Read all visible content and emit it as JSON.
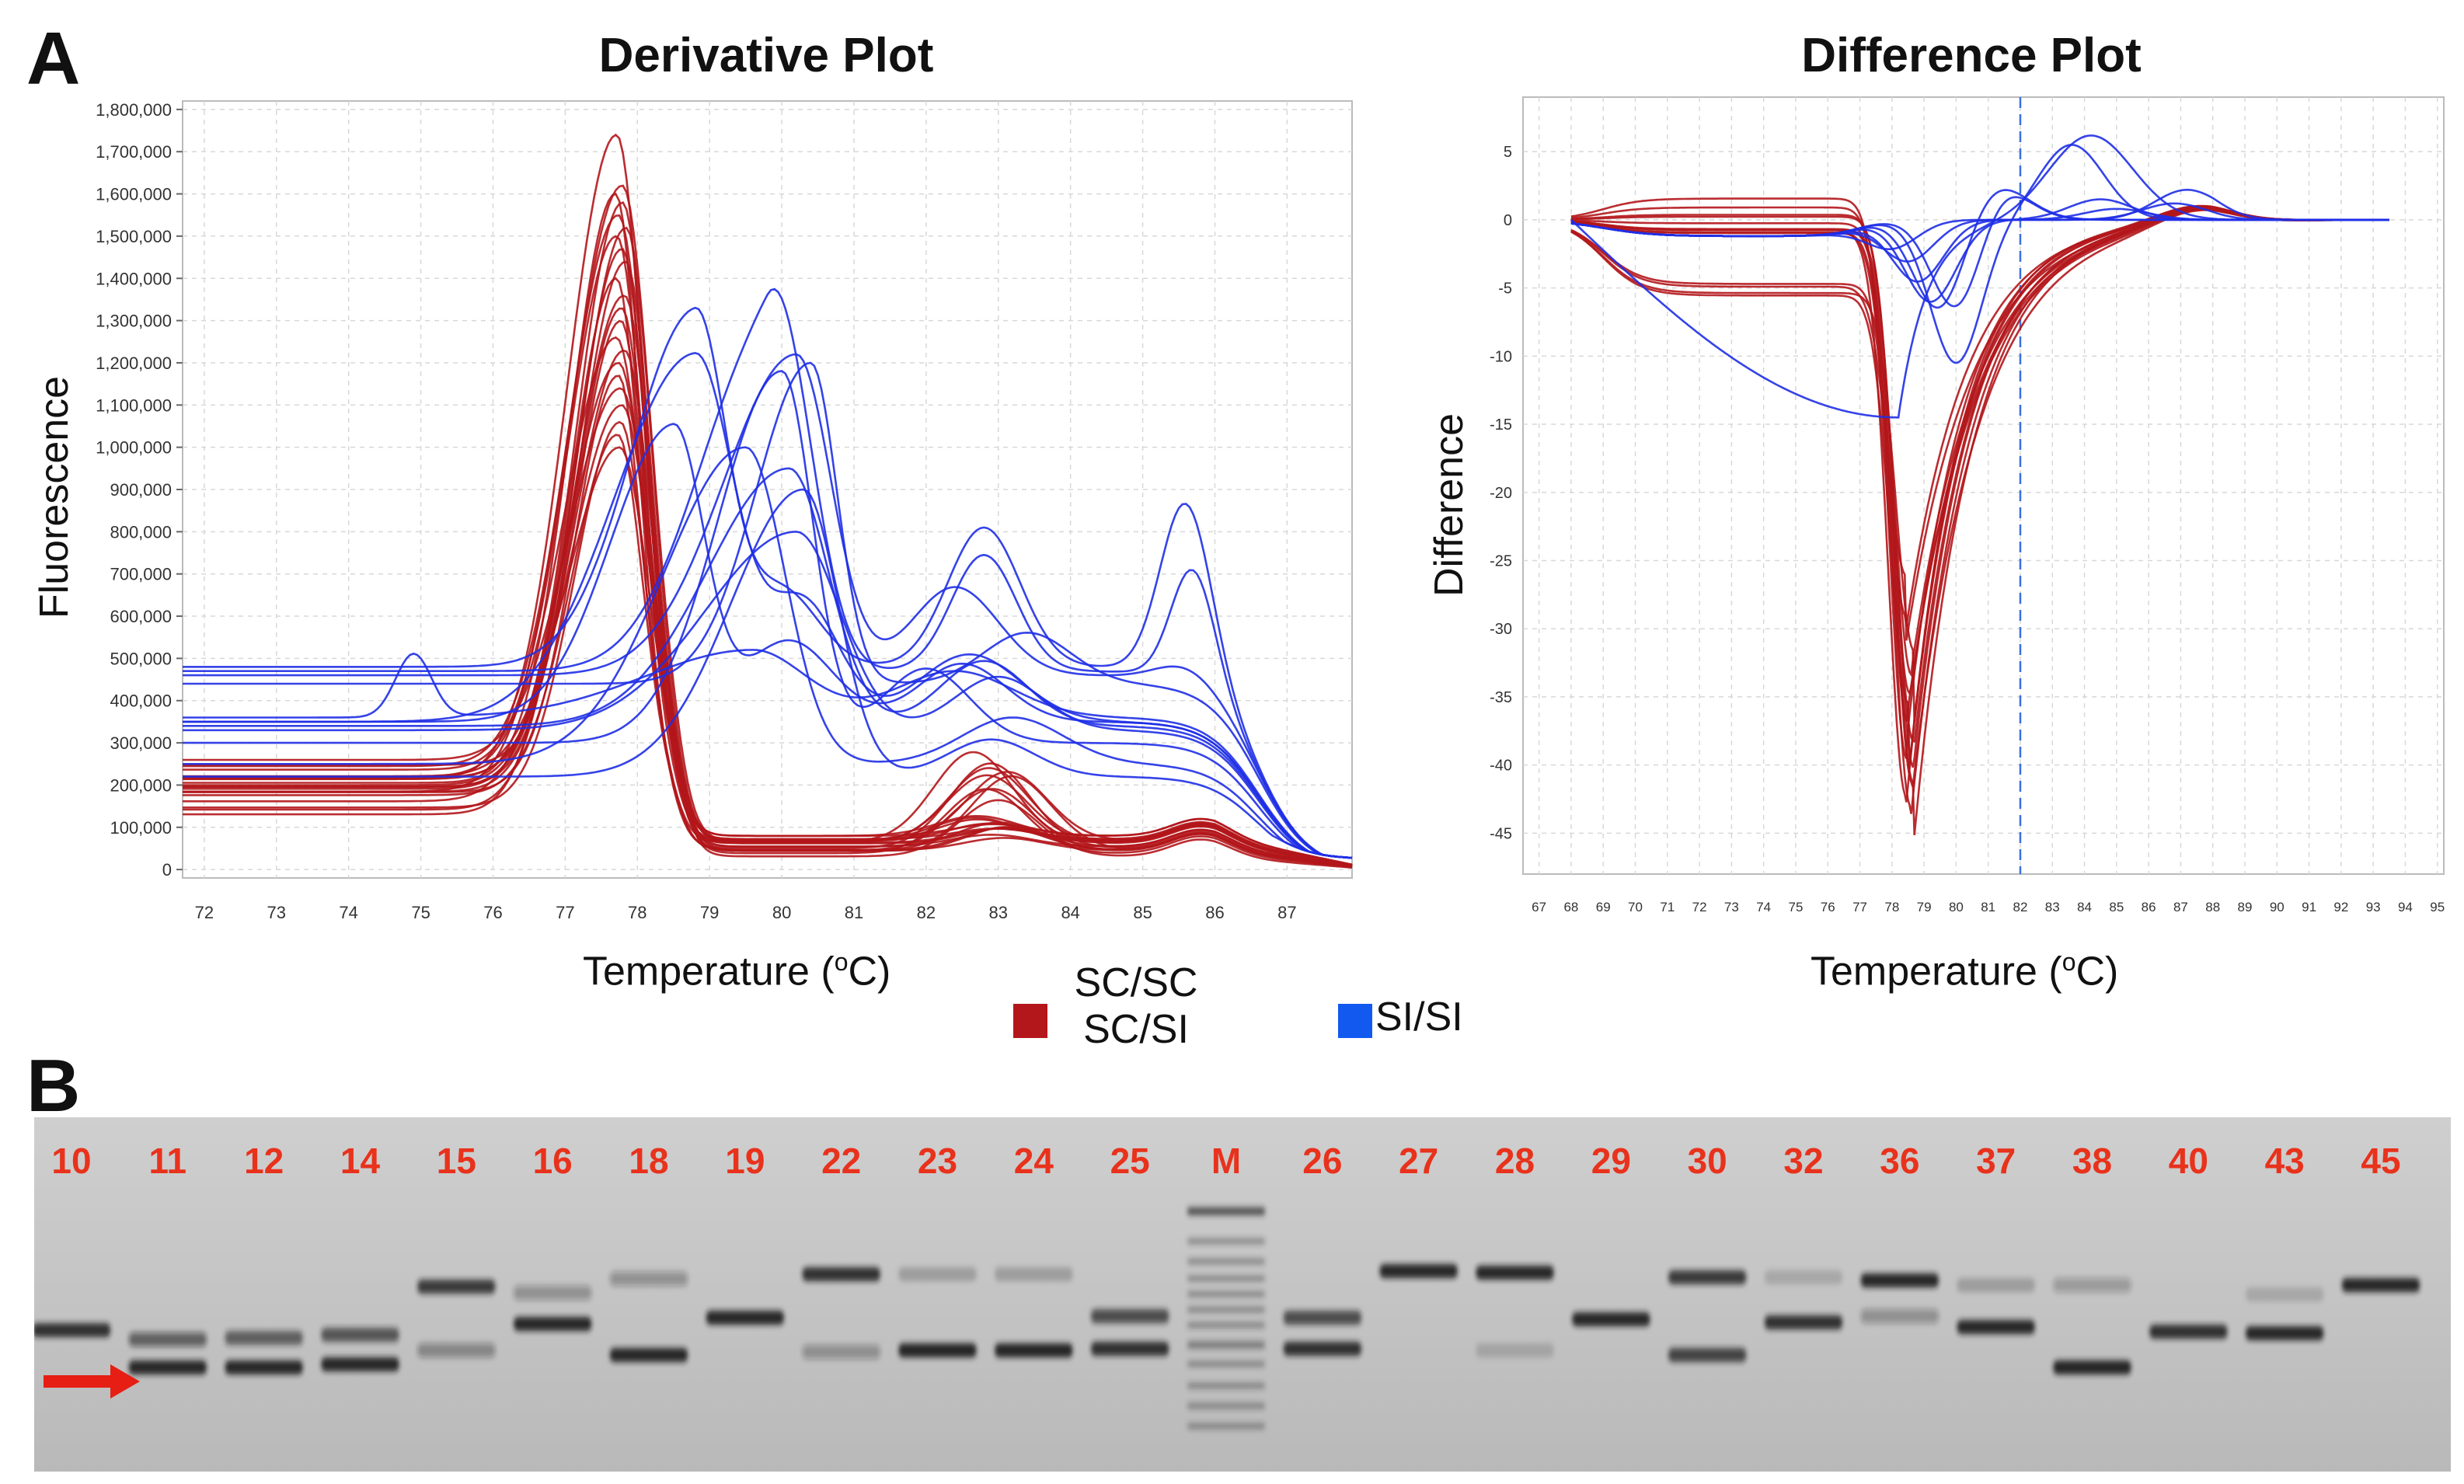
{
  "panelA": {
    "letter": "A",
    "derivative": {
      "title": "Derivative Plot",
      "ylabel": "Fluorescence",
      "xlabel_main": "Temperature (",
      "xlabel_sup": "o",
      "xlabel_end": "C)"
    },
    "difference": {
      "title": "Difference Plot",
      "ylabel": "Difference",
      "xlabel_main": "Temperature (",
      "xlabel_sup": "o",
      "xlabel_end": "C)"
    }
  },
  "legend": {
    "red_line1": "SC/SC",
    "red_line2": "SC/SI",
    "blue_label": "SI/SI"
  },
  "panelB": {
    "letter": "B",
    "lanes": [
      "10",
      "11",
      "12",
      "14",
      "15",
      "16",
      "18",
      "19",
      "22",
      "23",
      "24",
      "25",
      "M",
      "26",
      "27",
      "28",
      "29",
      "30",
      "32",
      "36",
      "37",
      "38",
      "40",
      "43",
      "45"
    ]
  },
  "colors": {
    "red": "#b3161b",
    "blue": "#1f2fe6",
    "legend_blue": "#1259f0",
    "gel_label": "#e8321c"
  },
  "chart_data": [
    {
      "type": "line",
      "title": "Derivative Plot",
      "xlabel": "Temperature (oC)",
      "ylabel": "Fluorescence",
      "xlim": [
        71.7,
        87.9
      ],
      "ylim": [
        -20000,
        1820000
      ],
      "xticks": [
        "72",
        "73",
        "74",
        "75",
        "76",
        "77",
        "78",
        "79",
        "80",
        "81",
        "82",
        "83",
        "84",
        "85",
        "86",
        "87"
      ],
      "yticks": [
        "0",
        "100,000",
        "200,000",
        "300,000",
        "400,000",
        "500,000",
        "600,000",
        "700,000",
        "800,000",
        "900,000",
        "1,000,000",
        "1,100,000",
        "1,200,000",
        "1,300,000",
        "1,400,000",
        "1,500,000",
        "1,600,000",
        "1,700,000",
        "1,800,000"
      ],
      "series": [
        {
          "name": "SC/SC SC/SI",
          "color": "red",
          "representative_peaks": [
            {
              "x": 77.85,
              "y": 1740000
            },
            {
              "x": 77.9,
              "y": 1620000
            },
            {
              "x": 77.85,
              "y": 1500000
            },
            {
              "x": 77.8,
              "y": 1350000
            },
            {
              "x": 77.75,
              "y": 1200000
            },
            {
              "x": 77.7,
              "y": 1100000
            }
          ],
          "secondary_peak": {
            "x": 82.8,
            "y": 210000
          }
        },
        {
          "name": "SI/SI",
          "color": "blue",
          "representative_peaks": [
            {
              "x": 78.8,
              "y": 1320000
            },
            {
              "x": 79.8,
              "y": 1260000
            },
            {
              "x": 80.2,
              "y": 1220000
            },
            {
              "x": 80.1,
              "y": 950000
            },
            {
              "x": 80.2,
              "y": 800000
            },
            {
              "x": 79.6,
              "y": 520000
            }
          ],
          "secondary_peaks": [
            {
              "x": 82.8,
              "y": 700000
            },
            {
              "x": 85.6,
              "y": 615000
            },
            {
              "x": 74.9,
              "y": 510000
            }
          ]
        }
      ]
    },
    {
      "type": "line",
      "title": "Difference Plot",
      "xlabel": "Temperature (oC)",
      "ylabel": "Difference",
      "xlim": [
        66.5,
        95.2
      ],
      "ylim": [
        -48,
        9
      ],
      "xticks": [
        "67",
        "68",
        "69",
        "70",
        "71",
        "72",
        "73",
        "74",
        "75",
        "76",
        "77",
        "78",
        "79",
        "80",
        "81",
        "82",
        "83",
        "84",
        "85",
        "86",
        "87",
        "88",
        "89",
        "90",
        "91",
        "92",
        "93",
        "94",
        "95"
      ],
      "yticks": [
        "5",
        "0",
        "-5",
        "-10",
        "-15",
        "-20",
        "-25",
        "-30",
        "-35",
        "-40",
        "-45"
      ],
      "reference_line_x": 82,
      "series": [
        {
          "name": "SC/SC SC/SI",
          "color": "red",
          "minimum": {
            "x": 78.5,
            "y": -46
          },
          "shoulder_range": [
            68,
            77
          ]
        },
        {
          "name": "SI/SI",
          "color": "blue",
          "maximum": {
            "x": 84,
            "y": 6.2
          },
          "minimum": {
            "x": 78.3,
            "y": -14.5
          }
        }
      ]
    }
  ]
}
